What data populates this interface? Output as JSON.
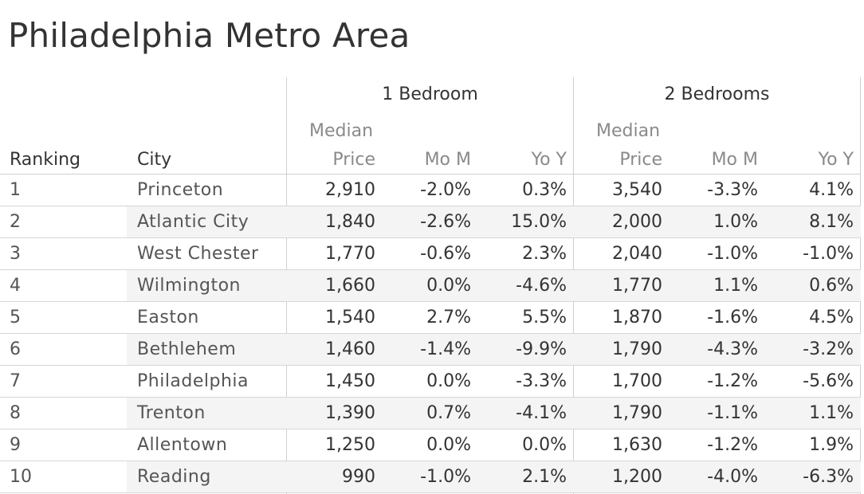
{
  "title": "Philadelphia Metro Area",
  "header": {
    "group_1": "1 Bedroom",
    "group_2": "2 Bedrooms",
    "median": "Median",
    "price": "Price",
    "mom": "Mo M",
    "yoy": "Yo Y",
    "ranking": "Ranking",
    "city": "City"
  },
  "chart_data": {
    "type": "table",
    "title": "Philadelphia Metro Area",
    "columns": [
      "Ranking",
      "City",
      "1 Bedroom Median Price",
      "1 Bedroom Mo M",
      "1 Bedroom Yo Y",
      "2 Bedrooms Median Price",
      "2 Bedrooms Mo M",
      "2 Bedrooms Yo Y"
    ],
    "rows": [
      [
        "1",
        "Princeton",
        "2,910",
        "-2.0%",
        "0.3%",
        "3,540",
        "-3.3%",
        "4.1%"
      ],
      [
        "2",
        "Atlantic City",
        "1,840",
        "-2.6%",
        "15.0%",
        "2,000",
        "1.0%",
        "8.1%"
      ],
      [
        "3",
        "West Chester",
        "1,770",
        "-0.6%",
        "2.3%",
        "2,040",
        "-1.0%",
        "-1.0%"
      ],
      [
        "4",
        "Wilmington",
        "1,660",
        "0.0%",
        "-4.6%",
        "1,770",
        "1.1%",
        "0.6%"
      ],
      [
        "5",
        "Easton",
        "1,540",
        "2.7%",
        "5.5%",
        "1,870",
        "-1.6%",
        "4.5%"
      ],
      [
        "6",
        "Bethlehem",
        "1,460",
        "-1.4%",
        "-9.9%",
        "1,790",
        "-4.3%",
        "-3.2%"
      ],
      [
        "7",
        "Philadelphia",
        "1,450",
        "0.0%",
        "-3.3%",
        "1,700",
        "-1.2%",
        "-5.6%"
      ],
      [
        "8",
        "Trenton",
        "1,390",
        "0.7%",
        "-4.1%",
        "1,790",
        "-1.1%",
        "1.1%"
      ],
      [
        "9",
        "Allentown",
        "1,250",
        "0.0%",
        "0.0%",
        "1,630",
        "-1.2%",
        "1.9%"
      ],
      [
        "10",
        "Reading",
        "990",
        "-1.0%",
        "2.1%",
        "1,200",
        "-4.0%",
        "-6.3%"
      ]
    ]
  }
}
